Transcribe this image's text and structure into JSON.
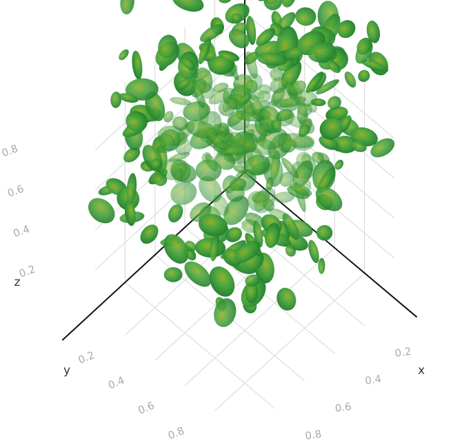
{
  "chart_data": {
    "type": "isosurface",
    "color": "#3f9e3a",
    "xaxis_title": "x",
    "yaxis_title": "y",
    "zaxis_title": "z",
    "xlim": [
      0,
      1
    ],
    "ylim": [
      0,
      1
    ],
    "zlim": [
      0,
      1
    ],
    "xticks": [
      0.2,
      0.4,
      0.6,
      0.8
    ],
    "yticks": [
      0.2,
      0.4,
      0.6,
      0.8
    ],
    "zticks": [
      0.2,
      0.4,
      0.6,
      0.8
    ],
    "grid": true
  }
}
